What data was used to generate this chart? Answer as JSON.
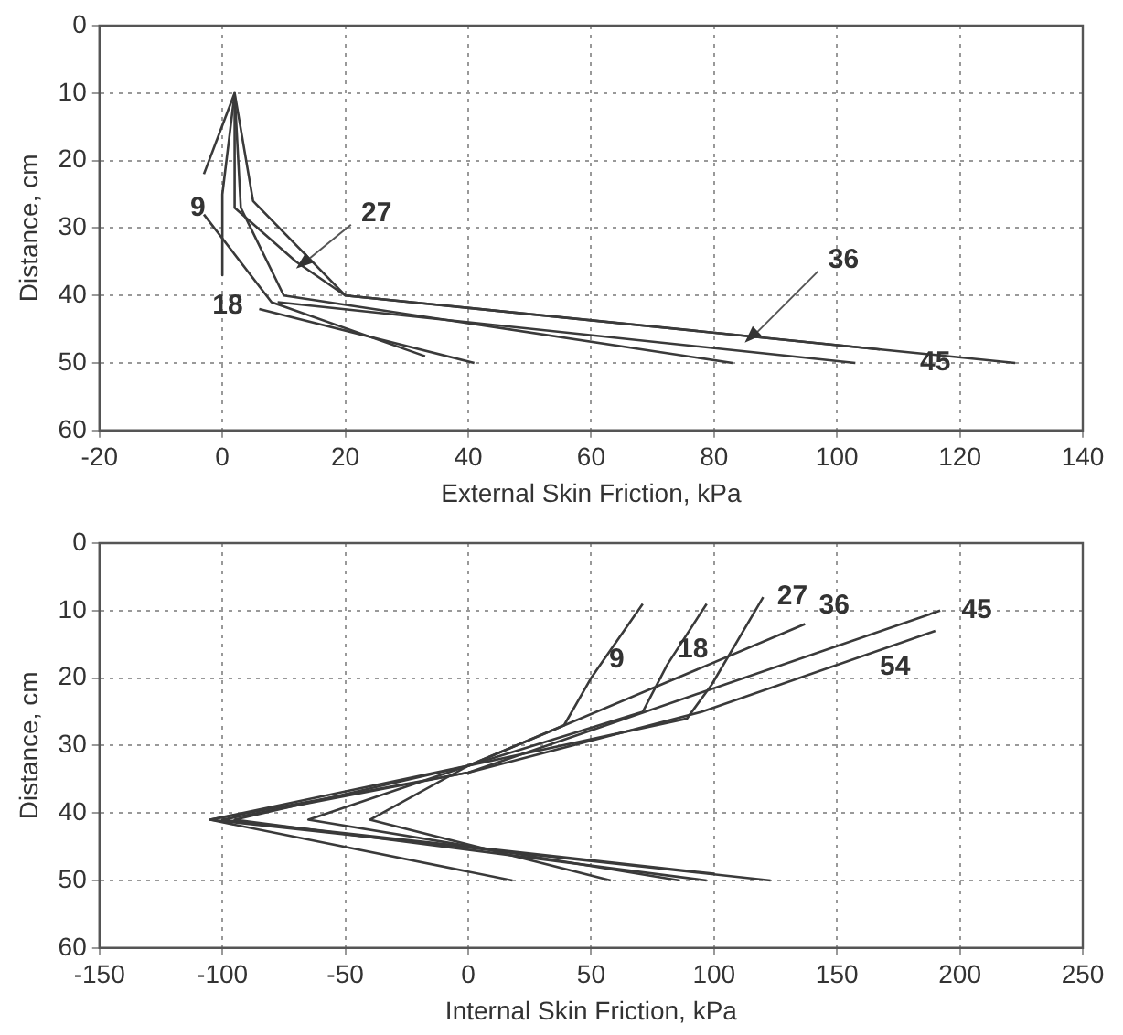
{
  "chart_data": [
    {
      "type": "line",
      "xlabel": "External Skin Friction, kPa",
      "ylabel": "Distance, cm",
      "xlim": [
        -20,
        140
      ],
      "xticks": [
        -20,
        0,
        20,
        40,
        60,
        80,
        100,
        120,
        140
      ],
      "ylim": [
        60,
        0
      ],
      "yticks": [
        0,
        10,
        20,
        30,
        40,
        50,
        60
      ],
      "grid": true,
      "legend": false,
      "marker": "none",
      "line_style": "solid",
      "series": [
        {
          "color": "#3a3a3a",
          "x": [
            2,
            -3
          ],
          "values": [
            10,
            22
          ]
        },
        {
          "color": "#3a3a3a",
          "x": [
            2,
            0,
            0
          ],
          "values": [
            10,
            25,
            37
          ]
        },
        {
          "color": "#3a3a3a",
          "x": [
            -3,
            8,
            33
          ],
          "values": [
            28,
            41,
            49
          ]
        },
        {
          "color": "#3a3a3a",
          "x": [
            2,
            2,
            12,
            20,
            107
          ],
          "values": [
            10,
            27,
            35,
            40,
            48
          ]
        },
        {
          "color": "#3a3a3a",
          "x": [
            2,
            5,
            20,
            129
          ],
          "values": [
            10,
            26,
            40,
            50
          ]
        },
        {
          "color": "#3a3a3a",
          "x": [
            2,
            3,
            10,
            83
          ],
          "values": [
            10,
            27,
            40,
            50
          ]
        },
        {
          "color": "#3a3a3a",
          "x": [
            6,
            41
          ],
          "values": [
            42,
            50
          ]
        },
        {
          "color": "#3a3a3a",
          "x": [
            9,
            103
          ],
          "values": [
            41,
            50
          ]
        }
      ],
      "annotations": [
        {
          "text": "9",
          "x": -4,
          "y": 27
        },
        {
          "text": "27",
          "x": 12,
          "y": 36
        },
        {
          "text": "18",
          "x": 8,
          "y": 41
        },
        {
          "text": "36",
          "x": 85,
          "y": 47
        },
        {
          "text": "45",
          "x": 116,
          "y": 50
        }
      ]
    },
    {
      "type": "line",
      "xlabel": "Internal Skin Friction, kPa",
      "ylabel": "Distance, cm",
      "xlim": [
        -150,
        250
      ],
      "xticks": [
        -150,
        -100,
        -50,
        0,
        50,
        100,
        150,
        200,
        250
      ],
      "ylim": [
        60,
        0
      ],
      "yticks": [
        0,
        10,
        20,
        30,
        40,
        50,
        60
      ],
      "grid": true,
      "legend": false,
      "marker": "none",
      "line_style": "solid",
      "series": [
        {
          "color": "#3a3a3a",
          "x": [
            71,
            50,
            39,
            0,
            -40,
            58
          ],
          "values": [
            9,
            20,
            27,
            33,
            41,
            50
          ]
        },
        {
          "color": "#3a3a3a",
          "x": [
            97,
            81,
            71,
            0,
            -65,
            86
          ],
          "values": [
            9,
            18,
            25,
            33,
            41,
            50
          ]
        },
        {
          "color": "#3a3a3a",
          "x": [
            120,
            99,
            89,
            0,
            -95,
            97
          ],
          "values": [
            8,
            21,
            26,
            33,
            41,
            50
          ]
        },
        {
          "color": "#3a3a3a",
          "x": [
            137,
            0,
            -105,
            123
          ],
          "values": [
            12,
            33,
            41,
            50
          ]
        },
        {
          "color": "#3a3a3a",
          "x": [
            192,
            0,
            -105,
            18
          ],
          "values": [
            10,
            34,
            41,
            50
          ]
        },
        {
          "color": "#3a3a3a",
          "x": [
            190,
            95,
            0,
            -100,
            100
          ],
          "values": [
            13,
            25,
            34,
            41,
            49
          ]
        }
      ],
      "annotations": [
        {
          "text": "9",
          "x": 50,
          "y": 20
        },
        {
          "text": "18",
          "x": 81,
          "y": 18
        },
        {
          "text": "27",
          "x": 120,
          "y": 8
        },
        {
          "text": "36",
          "x": 137,
          "y": 12
        },
        {
          "text": "45",
          "x": 192,
          "y": 10
        },
        {
          "text": "54",
          "x": 190,
          "y": 13
        }
      ]
    }
  ]
}
